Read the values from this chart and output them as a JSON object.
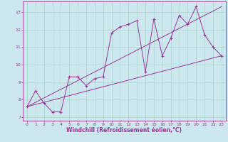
{
  "xlabel": "Windchill (Refroidissement éolien,°C)",
  "bg_color": "#cce8ee",
  "line_color": "#993399",
  "xlim": [
    -0.5,
    23.5
  ],
  "ylim": [
    6.8,
    13.6
  ],
  "xticks": [
    0,
    1,
    2,
    3,
    4,
    5,
    6,
    7,
    8,
    9,
    10,
    11,
    12,
    13,
    14,
    15,
    16,
    17,
    18,
    19,
    20,
    21,
    22,
    23
  ],
  "yticks": [
    7,
    8,
    9,
    10,
    11,
    12,
    13
  ],
  "series1_x": [
    0,
    1,
    2,
    3,
    4,
    5,
    6,
    7,
    8,
    9,
    10,
    11,
    12,
    13,
    14,
    15,
    16,
    17,
    18,
    19,
    20,
    21,
    22,
    23
  ],
  "series1_y": [
    7.6,
    8.5,
    7.8,
    7.3,
    7.3,
    9.3,
    9.3,
    8.8,
    9.2,
    9.3,
    11.8,
    12.15,
    12.3,
    12.5,
    9.6,
    12.6,
    10.5,
    11.5,
    12.8,
    12.3,
    13.3,
    11.7,
    11.0,
    10.5
  ],
  "series2_x": [
    0,
    23
  ],
  "series2_y": [
    7.6,
    10.5
  ],
  "series3_x": [
    0,
    23
  ],
  "series3_y": [
    7.6,
    13.3
  ],
  "grid_color": "#aad4cc",
  "tick_fontsize": 4.5,
  "xlabel_fontsize": 5.5
}
